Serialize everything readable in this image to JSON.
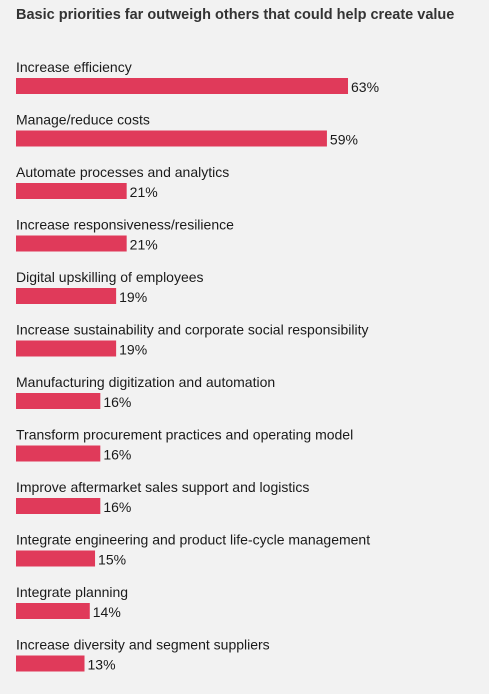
{
  "colors": {
    "bar": "#e03a5a",
    "background": "#f2f2f2"
  },
  "chart_data": {
    "type": "bar",
    "orientation": "horizontal",
    "title": "Basic priorities far outweigh others that could help create value",
    "value_suffix": "%",
    "categories": [
      "Increase efficiency",
      "Manage/reduce costs",
      "Automate processes and analytics",
      "Increase responsiveness/resilience",
      "Digital upskilling of employees",
      "Increase sustainability and corporate social responsibility",
      "Manufacturing digitization and automation",
      "Transform procurement practices and operating model",
      "Improve aftermarket sales support and logistics",
      "Integrate engineering and product life-cycle management",
      "Integrate planning",
      "Increase diversity and segment suppliers"
    ],
    "values": [
      63,
      59,
      21,
      21,
      19,
      19,
      16,
      16,
      16,
      15,
      14,
      13
    ],
    "labels": [
      "63%",
      "59%",
      "21%",
      "21%",
      "19%",
      "19%",
      "16%",
      "16%",
      "16%",
      "15%",
      "14%",
      "13%"
    ]
  }
}
